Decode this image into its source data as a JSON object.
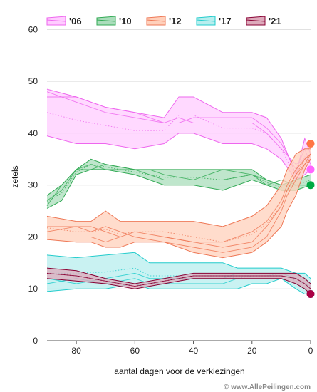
{
  "chart_data": {
    "type": "area",
    "xlabel": "aantal dagen voor de verkiezingen",
    "ylabel": "zetels",
    "xlim": [
      90,
      0
    ],
    "ylim": [
      0,
      65
    ],
    "x_ticks": [
      "80",
      "60",
      "40",
      "20",
      "0"
    ],
    "y_ticks": [
      "0",
      "10",
      "20",
      "30",
      "40",
      "50",
      "60"
    ],
    "grid": "horizontal",
    "legend_position": "top",
    "credit": "© www.AllePeilingen.com",
    "series": [
      {
        "name": "'06",
        "color": "#ee66ee",
        "fill": "#ffccff",
        "x": [
          90,
          80,
          70,
          60,
          50,
          45,
          40,
          30,
          25,
          20,
          15,
          10,
          5,
          2,
          0
        ],
        "upper": [
          48.5,
          47,
          45,
          44,
          43,
          47,
          47,
          44,
          44,
          44,
          43,
          39,
          32,
          39,
          36
        ],
        "lower": [
          39.5,
          38,
          38,
          37,
          38,
          40,
          40,
          38,
          38,
          38,
          37,
          35,
          31,
          32,
          33
        ],
        "lines": [
          [
            47,
            47,
            45,
            44,
            42,
            43,
            42,
            42,
            42,
            42,
            40,
            37,
            34,
            35,
            35
          ],
          [
            48,
            46,
            44,
            43,
            42,
            42,
            43,
            43,
            43,
            43,
            41,
            38,
            33,
            37,
            34
          ]
        ],
        "end_value": 33,
        "end_color": "#ff66ff"
      },
      {
        "name": "'10",
        "color": "#33aa55",
        "fill": "#aaddbb",
        "x": [
          90,
          85,
          80,
          75,
          70,
          60,
          55,
          50,
          40,
          30,
          20,
          15,
          10,
          5,
          0
        ],
        "upper": [
          28,
          30,
          33,
          35,
          34,
          33,
          33,
          33,
          33,
          33,
          33,
          31,
          30,
          31,
          32
        ],
        "lower": [
          25.5,
          27,
          32,
          33,
          33,
          32,
          31,
          30,
          30,
          29,
          31,
          30,
          29,
          29,
          30
        ],
        "lines": [
          [
            26,
            30,
            33,
            34,
            33,
            33,
            32,
            31,
            31,
            31,
            32,
            31,
            30,
            30,
            30
          ],
          [
            27,
            29,
            33,
            33,
            34,
            33,
            33,
            32,
            31,
            33,
            32,
            30,
            31,
            30,
            30
          ]
        ],
        "end_value": 30,
        "end_color": "#00aa44"
      },
      {
        "name": "'12",
        "color": "#ee7755",
        "fill": "#ffd0bb",
        "x": [
          90,
          80,
          75,
          70,
          65,
          60,
          50,
          40,
          30,
          20,
          15,
          10,
          8,
          5,
          2,
          0
        ],
        "upper": [
          24,
          23,
          23,
          25,
          23,
          23,
          23,
          23,
          22,
          24,
          26,
          30,
          33,
          36,
          37,
          37
        ],
        "lower": [
          19.5,
          19,
          19,
          18,
          18,
          19,
          19,
          17,
          16,
          17,
          19,
          22,
          25,
          28,
          33,
          35
        ],
        "lines": [
          [
            22,
            22,
            21,
            22,
            21,
            20,
            20,
            19,
            19,
            21,
            23,
            27,
            30,
            33,
            35,
            36
          ],
          [
            21,
            22,
            22,
            21,
            20,
            21,
            20,
            19,
            18,
            19,
            22,
            26,
            29,
            32,
            34,
            35
          ],
          [
            20,
            20,
            20,
            19,
            20,
            20,
            19,
            18,
            17,
            18,
            20,
            25,
            28,
            31,
            34,
            36
          ]
        ],
        "end_value": 38,
        "end_color": "#ff7744"
      },
      {
        "name": "'17",
        "color": "#22cccc",
        "fill": "#b7eeee",
        "x": [
          90,
          80,
          70,
          60,
          55,
          50,
          40,
          30,
          25,
          20,
          15,
          10,
          5,
          2,
          0
        ],
        "upper": [
          16.5,
          16,
          16.5,
          17,
          15,
          15,
          15,
          15,
          14,
          14,
          14,
          14,
          13,
          13,
          12
        ],
        "lower": [
          9.5,
          10,
          10,
          11,
          10,
          10,
          10,
          10,
          10,
          11,
          11,
          12,
          10,
          9,
          9
        ],
        "lines": [
          [
            12,
            11,
            12,
            13,
            12,
            12,
            12,
            12,
            13,
            13,
            13,
            13,
            12,
            11,
            10
          ],
          [
            11,
            12,
            11,
            12,
            11,
            11,
            11,
            11,
            12,
            12,
            12,
            12,
            11,
            10,
            9
          ]
        ],
        "end_value": 9,
        "end_color": "#22bbcc"
      },
      {
        "name": "'21",
        "color": "#880033",
        "fill": "#ddaabb",
        "x": [
          90,
          80,
          70,
          60,
          50,
          40,
          30,
          20,
          15,
          10,
          5,
          2,
          0
        ],
        "upper": [
          14,
          13.5,
          12,
          11,
          12,
          13,
          13,
          13,
          13,
          13,
          13,
          12,
          11
        ],
        "lower": [
          12,
          11.5,
          11,
          10,
          11,
          12,
          12,
          12,
          12,
          12,
          11,
          10,
          9
        ],
        "lines": [
          [
            13,
            12.5,
            11.5,
            10.5,
            11.5,
            12.5,
            12.5,
            12.5,
            12.5,
            12.5,
            12,
            11,
            10
          ]
        ],
        "end_value": 9,
        "end_color": "#aa0044"
      }
    ]
  }
}
